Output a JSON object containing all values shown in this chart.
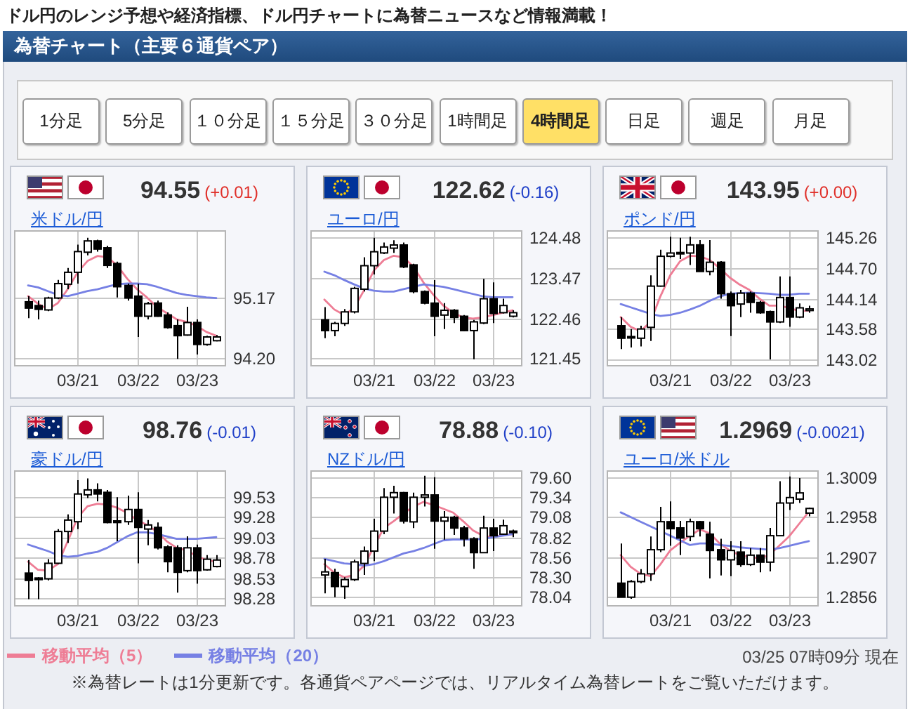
{
  "chart_data": [
    {
      "type": "other",
      "subtitle": "ドル円のレンジ予想や経済指標、ドル円チャートに為替ニュースなど情報満載！",
      "title": "為替チャート（主要６通貨ペア）",
      "annotations": [
        "1分足",
        "5分足",
        "１０分足",
        "１５分足",
        "３０分足",
        "1時間足",
        "4時間足",
        "日足",
        "週足",
        "月足"
      ]
    },
    {
      "type": "candlestick",
      "title": "米ドル/円",
      "annotations": [
        "94.55",
        "(+0.01)"
      ],
      "legend": "bottom",
      "grid": true,
      "categories": [
        null,
        null,
        null,
        null,
        null,
        "03/21",
        null,
        null,
        null,
        null,
        null,
        "03/22",
        null,
        null,
        null,
        null,
        null,
        "03/23",
        null,
        null
      ],
      "ylim": [
        94.07,
        96.24
      ],
      "yticks": [
        95.17,
        {
          "value": 94.2,
          "label": "94.20"
        }
      ],
      "ohlc": [
        [
          95.1,
          95.19,
          94.84,
          95.0
        ],
        [
          95.04,
          95.12,
          94.82,
          94.98
        ],
        [
          94.97,
          95.18,
          94.95,
          95.16
        ],
        [
          95.16,
          95.45,
          95.14,
          95.39
        ],
        [
          95.38,
          95.64,
          95.3,
          95.57
        ],
        [
          95.57,
          96.01,
          95.39,
          95.9
        ],
        [
          95.89,
          96.12,
          95.84,
          96.07
        ],
        [
          96.07,
          96.09,
          95.9,
          95.94
        ],
        [
          95.96,
          95.99,
          95.64,
          95.68
        ],
        [
          95.71,
          95.74,
          95.17,
          95.34
        ],
        [
          95.36,
          95.39,
          95.12,
          95.16
        ],
        [
          95.19,
          95.39,
          94.54,
          94.87
        ],
        [
          94.87,
          95.1,
          94.82,
          95.07
        ],
        [
          95.08,
          95.12,
          94.86,
          94.87
        ],
        [
          94.89,
          94.93,
          94.67,
          94.69
        ],
        [
          94.72,
          94.82,
          94.19,
          94.56
        ],
        [
          94.57,
          95.02,
          94.56,
          94.77
        ],
        [
          94.77,
          94.82,
          94.26,
          94.42
        ],
        [
          94.42,
          94.56,
          94.4,
          94.54
        ],
        [
          94.48,
          94.57,
          94.47,
          94.54
        ]
      ],
      "series": [
        {
          "name": "移動平均（5）",
          "type": "line",
          "color": "#ee7d95",
          "values": [
            95.19,
            95.07,
            94.98,
            95.08,
            95.3,
            95.57,
            95.75,
            95.83,
            95.81,
            95.68,
            95.47,
            95.3,
            95.17,
            95.02,
            94.92,
            94.82,
            94.78,
            94.72,
            94.62,
            94.56
          ]
        },
        {
          "name": "移動平均（20）",
          "type": "line",
          "color": "#7680e4",
          "values": [
            95.36,
            95.33,
            95.27,
            95.21,
            95.19,
            95.23,
            95.27,
            95.3,
            95.34,
            95.38,
            95.39,
            95.39,
            95.38,
            95.34,
            95.29,
            95.24,
            95.21,
            95.19,
            95.17,
            95.16
          ]
        }
      ]
    },
    {
      "type": "candlestick",
      "title": "ユーロ/円",
      "annotations": [
        "122.62",
        "(-0.16)"
      ],
      "grid": true,
      "categories": [
        null,
        null,
        null,
        null,
        null,
        "03/21",
        null,
        null,
        null,
        null,
        null,
        "03/22",
        null,
        null,
        null,
        null,
        null,
        "03/23",
        null,
        null
      ],
      "ylim": [
        121.25,
        124.67
      ],
      "yticks": [
        124.48,
        123.47,
        122.46,
        121.45
      ],
      "ohlc": [
        [
          122.42,
          122.74,
          121.96,
          122.15
        ],
        [
          122.15,
          122.37,
          122.01,
          122.33
        ],
        [
          122.33,
          122.69,
          122.27,
          122.62
        ],
        [
          122.62,
          123.25,
          122.58,
          123.21
        ],
        [
          123.19,
          123.99,
          123.13,
          123.78
        ],
        [
          123.78,
          124.48,
          123.56,
          124.13
        ],
        [
          124.1,
          124.36,
          124.07,
          124.25
        ],
        [
          124.22,
          124.42,
          124.1,
          124.3
        ],
        [
          124.3,
          124.36,
          123.72,
          123.75
        ],
        [
          123.8,
          123.83,
          123.09,
          123.13
        ],
        [
          123.13,
          123.16,
          122.81,
          122.84
        ],
        [
          122.84,
          123.42,
          122.01,
          122.51
        ],
        [
          122.54,
          122.84,
          122.19,
          122.66
        ],
        [
          122.66,
          122.69,
          122.34,
          122.48
        ],
        [
          122.51,
          122.54,
          122.13,
          122.15
        ],
        [
          122.15,
          122.42,
          121.43,
          122.37
        ],
        [
          122.34,
          123.45,
          122.31,
          122.95
        ],
        [
          122.95,
          123.36,
          122.34,
          122.58
        ],
        [
          122.6,
          122.95,
          122.58,
          122.78
        ],
        [
          122.51,
          122.66,
          122.48,
          122.6
        ]
      ],
      "series": [
        {
          "type": "line",
          "color": "#ee7d95",
          "values": [
            122.93,
            122.68,
            122.54,
            122.72,
            123.16,
            123.66,
            123.92,
            124.03,
            123.99,
            123.75,
            123.36,
            123.05,
            122.78,
            122.6,
            122.48,
            122.45,
            122.48,
            122.54,
            122.6,
            122.66
          ]
        },
        {
          "type": "line",
          "color": "#7680e4",
          "values": [
            123.63,
            123.54,
            123.42,
            123.31,
            123.21,
            123.15,
            123.13,
            123.13,
            123.19,
            123.25,
            123.31,
            123.28,
            123.25,
            123.19,
            123.13,
            123.07,
            123.01,
            122.99,
            122.99,
            122.99
          ]
        }
      ]
    },
    {
      "type": "candlestick",
      "title": "ポンド/円",
      "annotations": [
        "143.95",
        "(+0.00)"
      ],
      "grid": true,
      "categories": [
        null,
        null,
        null,
        null,
        null,
        "03/21",
        null,
        null,
        null,
        null,
        null,
        "03/22",
        null,
        null,
        null,
        null,
        null,
        "03/23",
        null,
        null
      ],
      "ylim": [
        142.89,
        145.4
      ],
      "yticks": [
        145.26,
        {
          "value": 144.7,
          "label": "144.70"
        },
        144.14,
        143.58,
        143.02
      ],
      "ohlc": [
        [
          143.64,
          143.8,
          143.21,
          143.41
        ],
        [
          143.44,
          143.58,
          143.24,
          143.42
        ],
        [
          143.41,
          143.64,
          143.26,
          143.58
        ],
        [
          143.61,
          144.57,
          143.36,
          144.37
        ],
        [
          144.37,
          145.04,
          144.36,
          144.92
        ],
        [
          144.92,
          145.28,
          144.9,
          144.98
        ],
        [
          144.97,
          145.26,
          144.87,
          144.99
        ],
        [
          144.98,
          145.28,
          144.76,
          145.13
        ],
        [
          145.13,
          145.22,
          144.64,
          144.64
        ],
        [
          144.64,
          145.22,
          144.57,
          144.81
        ],
        [
          144.81,
          144.83,
          144.14,
          144.23
        ],
        [
          144.23,
          144.27,
          143.45,
          144.01
        ],
        [
          144.04,
          144.3,
          143.8,
          144.24
        ],
        [
          144.24,
          144.27,
          143.88,
          144.07
        ],
        [
          144.07,
          144.1,
          143.86,
          143.88
        ],
        [
          143.9,
          143.92,
          143.02,
          143.71
        ],
        [
          143.71,
          144.55,
          143.69,
          144.16
        ],
        [
          144.16,
          144.55,
          143.62,
          143.8
        ],
        [
          143.8,
          144.05,
          143.78,
          143.97
        ],
        [
          143.92,
          144.01,
          143.88,
          143.95
        ]
      ],
      "series": [
        {
          "type": "line",
          "color": "#ee7d95",
          "values": [
            143.8,
            143.62,
            143.54,
            143.71,
            144.18,
            144.57,
            144.83,
            144.93,
            144.92,
            144.85,
            144.7,
            144.53,
            144.4,
            144.3,
            144.14,
            144.01,
            144.01,
            143.97,
            143.91,
            143.92
          ]
        },
        {
          "type": "line",
          "color": "#7680e4",
          "values": [
            144.04,
            143.98,
            143.92,
            143.86,
            143.82,
            143.84,
            143.88,
            143.94,
            144.01,
            144.1,
            144.18,
            144.23,
            144.24,
            144.25,
            144.24,
            144.23,
            144.21,
            144.21,
            144.23,
            144.23
          ]
        }
      ]
    },
    {
      "type": "candlestick",
      "title": "豪ドル/円",
      "annotations": [
        "98.76",
        "(-0.01)"
      ],
      "grid": true,
      "categories": [
        null,
        null,
        null,
        null,
        null,
        "03/21",
        null,
        null,
        null,
        null,
        null,
        "03/22",
        null,
        null,
        null,
        null,
        null,
        "03/23",
        null,
        null
      ],
      "ylim": [
        98.18,
        99.85
      ],
      "yticks": [
        99.53,
        99.28,
        99.03,
        98.78,
        98.53,
        98.28
      ],
      "ohlc": [
        [
          98.59,
          98.75,
          98.27,
          98.5
        ],
        [
          98.53,
          98.54,
          98.27,
          98.51
        ],
        [
          98.52,
          98.76,
          98.5,
          98.71
        ],
        [
          98.71,
          99.13,
          98.7,
          99.1
        ],
        [
          99.1,
          99.31,
          98.96,
          99.24
        ],
        [
          99.22,
          99.73,
          99.13,
          99.56
        ],
        [
          99.55,
          99.75,
          99.51,
          99.61
        ],
        [
          99.61,
          99.69,
          99.47,
          99.56
        ],
        [
          99.58,
          99.61,
          99.2,
          99.21
        ],
        [
          99.23,
          99.52,
          98.98,
          99.21
        ],
        [
          99.22,
          99.54,
          99.18,
          99.37
        ],
        [
          99.37,
          99.58,
          98.71,
          99.15
        ],
        [
          99.13,
          99.24,
          98.93,
          99.18
        ],
        [
          99.15,
          99.21,
          98.88,
          98.9
        ],
        [
          98.91,
          98.93,
          98.6,
          98.73
        ],
        [
          98.9,
          98.93,
          98.35,
          98.6
        ],
        [
          98.62,
          99.04,
          98.6,
          98.9
        ],
        [
          98.9,
          98.94,
          98.46,
          98.62
        ],
        [
          98.63,
          98.81,
          98.62,
          98.76
        ],
        [
          98.67,
          98.81,
          98.66,
          98.75
        ]
      ],
      "series": [
        {
          "type": "line",
          "color": "#ee7d95",
          "values": [
            98.73,
            98.63,
            98.62,
            98.7,
            98.98,
            99.27,
            99.41,
            99.44,
            99.43,
            99.39,
            99.33,
            99.24,
            99.18,
            99.1,
            98.98,
            98.9,
            98.87,
            98.8,
            98.75,
            98.73
          ]
        },
        {
          "type": "line",
          "color": "#7680e4",
          "values": [
            98.94,
            98.9,
            98.86,
            98.81,
            98.79,
            98.8,
            98.83,
            98.85,
            98.9,
            98.97,
            99.04,
            99.09,
            99.09,
            99.07,
            99.04,
            99.01,
            99.01,
            99.01,
            99.02,
            99.03
          ]
        }
      ]
    },
    {
      "type": "candlestick",
      "title": "NZドル/円",
      "annotations": [
        "78.88",
        "(-0.10)"
      ],
      "grid": true,
      "categories": [
        null,
        null,
        null,
        null,
        null,
        "03/21",
        null,
        null,
        null,
        null,
        null,
        "03/22",
        null,
        null,
        null,
        null,
        null,
        "03/23",
        null,
        null
      ],
      "ylim": [
        77.92,
        79.69
      ],
      "yticks": [
        {
          "value": 79.6,
          "label": "79.60"
        },
        79.34,
        79.08,
        78.82,
        78.56,
        {
          "value": 78.3,
          "label": "78.30"
        },
        78.04
      ],
      "ohlc": [
        [
          78.33,
          78.54,
          78.09,
          78.37
        ],
        [
          78.36,
          78.41,
          78.04,
          78.18
        ],
        [
          78.18,
          78.3,
          78.02,
          78.27
        ],
        [
          78.27,
          78.53,
          78.25,
          78.5
        ],
        [
          78.48,
          78.7,
          78.33,
          78.64
        ],
        [
          78.64,
          79.06,
          78.51,
          78.9
        ],
        [
          78.9,
          79.46,
          78.86,
          79.34
        ],
        [
          79.34,
          79.49,
          79.13,
          79.4
        ],
        [
          79.4,
          79.41,
          79.0,
          79.03
        ],
        [
          79.02,
          79.4,
          78.94,
          79.34
        ],
        [
          79.34,
          79.62,
          79.22,
          79.37
        ],
        [
          79.37,
          79.6,
          78.67,
          79.03
        ],
        [
          79.03,
          79.16,
          78.79,
          79.08
        ],
        [
          79.08,
          79.1,
          78.85,
          78.94
        ],
        [
          78.94,
          78.97,
          78.7,
          78.8
        ],
        [
          78.8,
          78.82,
          78.41,
          78.62
        ],
        [
          78.62,
          79.1,
          78.62,
          78.94
        ],
        [
          78.94,
          79.06,
          78.64,
          78.84
        ],
        [
          78.86,
          79.05,
          78.85,
          78.97
        ],
        [
          78.9,
          78.92,
          78.82,
          78.88
        ]
      ],
      "series": [
        {
          "type": "line",
          "color": "#ee7d95",
          "values": [
            78.47,
            78.36,
            78.3,
            78.33,
            78.45,
            78.7,
            78.94,
            79.03,
            79.13,
            79.22,
            79.28,
            79.24,
            79.19,
            79.14,
            79.03,
            78.91,
            78.84,
            78.82,
            78.85,
            78.86
          ]
        },
        {
          "type": "line",
          "color": "#7680e4",
          "values": [
            78.54,
            78.51,
            78.48,
            78.47,
            78.45,
            78.47,
            78.51,
            78.56,
            78.61,
            78.64,
            78.68,
            78.73,
            78.78,
            78.79,
            78.79,
            78.79,
            78.8,
            78.82,
            78.84,
            78.86
          ]
        }
      ]
    },
    {
      "type": "candlestick",
      "title": "ユーロ/米ドル",
      "annotations": [
        "1.2969",
        "(-0.0021)"
      ],
      "grid": true,
      "categories": [
        null,
        null,
        null,
        null,
        null,
        "03/21",
        null,
        null,
        null,
        null,
        null,
        "03/22",
        null,
        null,
        null,
        null,
        null,
        "03/23",
        null,
        null
      ],
      "ylim": [
        1.2843,
        1.3018
      ],
      "yticks": [
        1.3009,
        1.2958,
        1.2907,
        1.2856
      ],
      "ohlc": [
        [
          1.2873,
          1.2924,
          1.2855,
          1.2855
        ],
        [
          1.2855,
          1.2877,
          1.2853,
          1.2875
        ],
        [
          1.2875,
          1.2891,
          1.2873,
          1.2885
        ],
        [
          1.2885,
          1.2933,
          1.2876,
          1.2916
        ],
        [
          1.2916,
          1.2971,
          1.2913,
          1.2952
        ],
        [
          1.2952,
          1.2978,
          1.2921,
          1.2943
        ],
        [
          1.2944,
          1.2953,
          1.2909,
          1.2931
        ],
        [
          1.2933,
          1.2956,
          1.2927,
          1.2952
        ],
        [
          1.2952,
          1.2953,
          1.2933,
          1.2943
        ],
        [
          1.2936,
          1.2952,
          1.2879,
          1.2915
        ],
        [
          1.2916,
          1.293,
          1.2883,
          1.2903
        ],
        [
          1.2903,
          1.2927,
          1.2882,
          1.2915
        ],
        [
          1.2913,
          1.2927,
          1.2894,
          1.2897
        ],
        [
          1.2897,
          1.2918,
          1.2895,
          1.2909
        ],
        [
          1.2909,
          1.2918,
          1.2887,
          1.29
        ],
        [
          1.29,
          1.2944,
          1.2888,
          1.2934
        ],
        [
          1.2934,
          1.3004,
          1.2934,
          1.2976
        ],
        [
          1.2976,
          1.301,
          1.2967,
          1.2983
        ],
        [
          1.2981,
          1.3008,
          1.2976,
          1.2989
        ],
        [
          1.2963,
          1.297,
          1.2959,
          1.2969
        ]
      ],
      "series": [
        {
          "type": "line",
          "color": "#ee7d95",
          "values": [
            1.2909,
            1.2894,
            1.2885,
            1.2882,
            1.2897,
            1.2915,
            1.2925,
            1.2934,
            1.2942,
            1.2937,
            1.2924,
            1.2915,
            1.2909,
            1.2907,
            1.2905,
            1.2909,
            1.2921,
            1.2933,
            1.2949,
            1.2965
          ]
        },
        {
          "type": "line",
          "color": "#7680e4",
          "values": [
            1.2964,
            1.2958,
            1.2952,
            1.2946,
            1.294,
            1.2934,
            1.2928,
            1.2922,
            1.2924,
            1.2924,
            1.2922,
            1.2921,
            1.2919,
            1.2918,
            1.2917,
            1.2916,
            1.2918,
            1.2921,
            1.2924,
            1.2927
          ]
        }
      ]
    },
    {
      "type": "other",
      "annotations": [
        "03/25 07時09分 現在",
        "※為替レートは1分更新です。各通貨ペアページでは、リアルタイム為替レートをご覧いただけます。"
      ]
    }
  ]
}
